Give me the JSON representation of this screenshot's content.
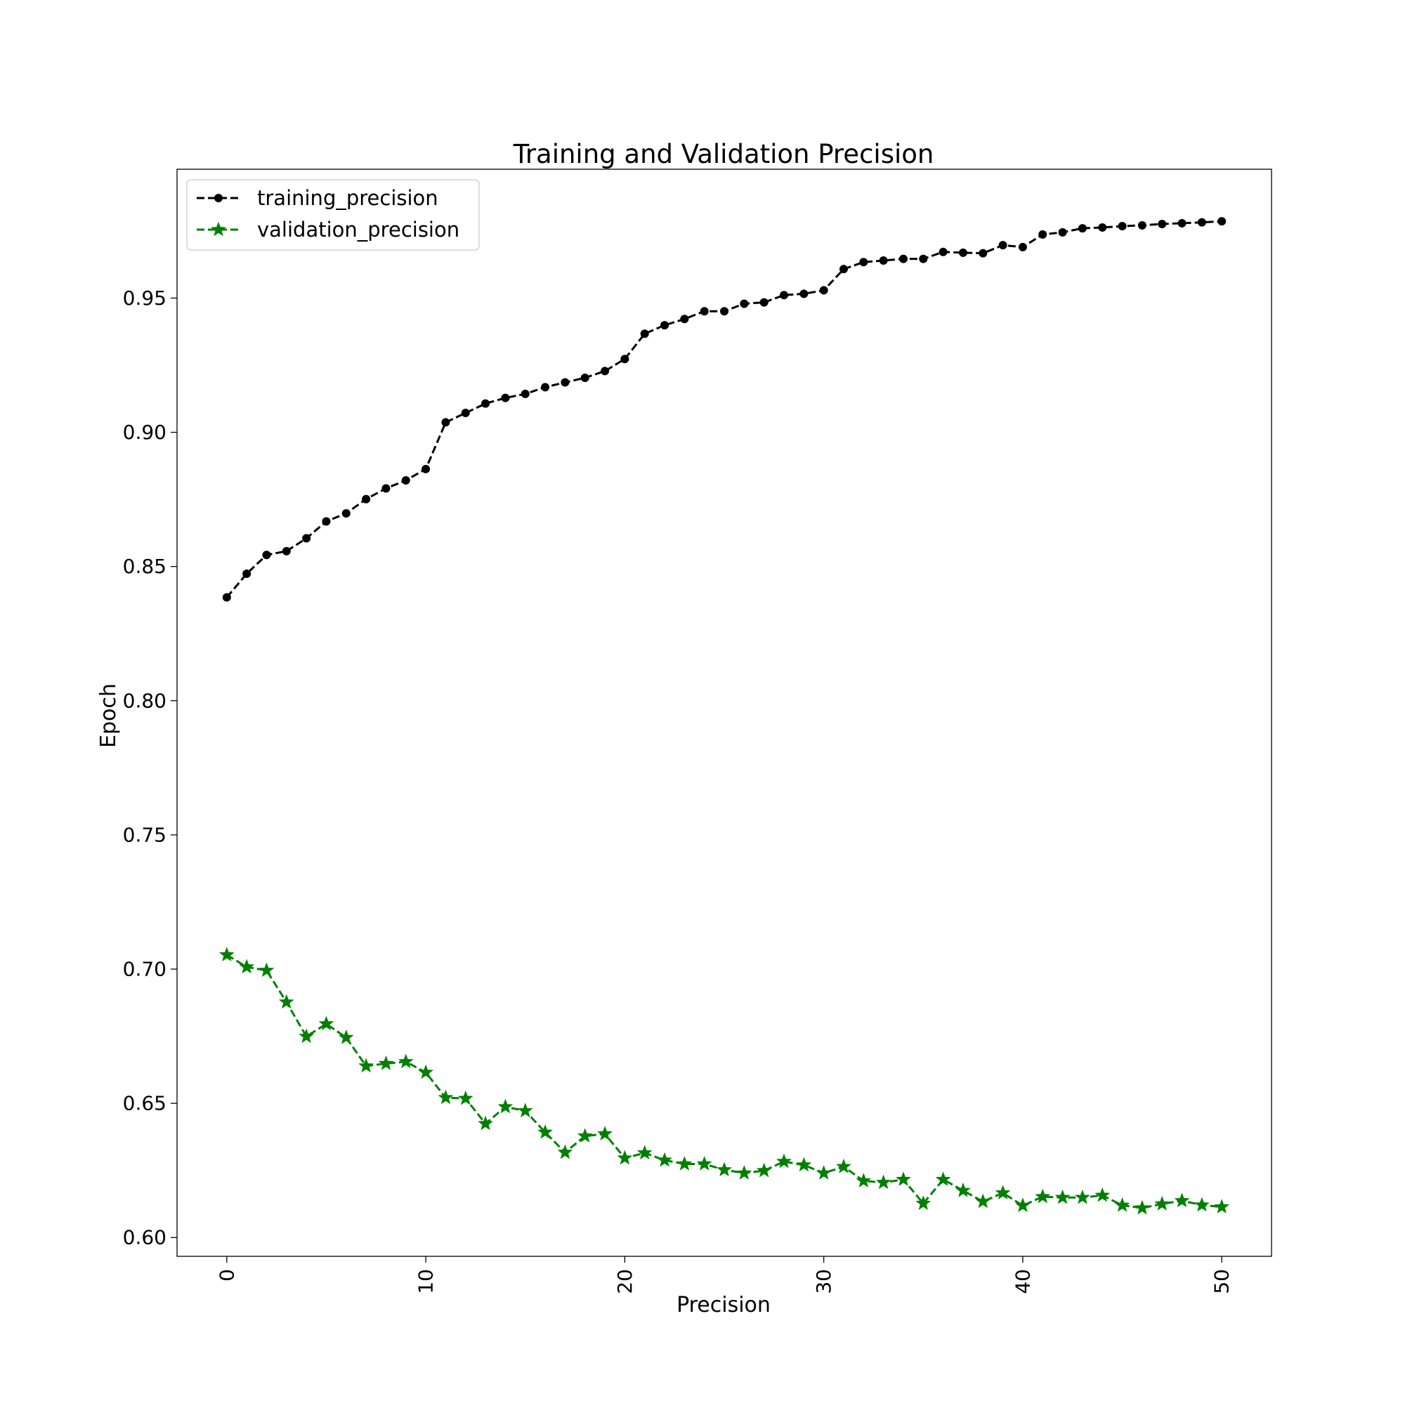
{
  "chart_data": {
    "type": "line",
    "title": "Training and Validation Precision",
    "xlabel": "Precision",
    "ylabel": "Epoch",
    "xlim": [
      -2.5,
      52.5
    ],
    "ylim": [
      0.593,
      0.998
    ],
    "xticks": [
      0,
      10,
      20,
      30,
      40,
      50
    ],
    "xtick_labels": [
      "0",
      "10",
      "20",
      "30",
      "40",
      "50"
    ],
    "yticks": [
      0.6,
      0.65,
      0.7,
      0.75,
      0.8,
      0.85,
      0.9,
      0.95
    ],
    "ytick_labels": [
      "0.60",
      "0.65",
      "0.70",
      "0.75",
      "0.80",
      "0.85",
      "0.90",
      "0.95"
    ],
    "grid": false,
    "legend_position": "top-left",
    "x": [
      0,
      1,
      2,
      3,
      4,
      5,
      6,
      7,
      8,
      9,
      10,
      11,
      12,
      13,
      14,
      15,
      16,
      17,
      18,
      19,
      20,
      21,
      22,
      23,
      24,
      25,
      26,
      27,
      28,
      29,
      30,
      31,
      32,
      33,
      34,
      35,
      36,
      37,
      38,
      39,
      40,
      41,
      42,
      43,
      44,
      45,
      46,
      47,
      48,
      49,
      50
    ],
    "series": [
      {
        "name": "training_precision",
        "color": "#000000",
        "marker": "circle",
        "line_style": "dashed",
        "values": [
          0.8385,
          0.8473,
          0.8543,
          0.8557,
          0.8605,
          0.8668,
          0.8698,
          0.8751,
          0.8791,
          0.8821,
          0.8863,
          0.9037,
          0.9072,
          0.9107,
          0.9128,
          0.9143,
          0.9168,
          0.9186,
          0.9203,
          0.9228,
          0.9273,
          0.9367,
          0.9399,
          0.9422,
          0.9451,
          0.9451,
          0.9479,
          0.9484,
          0.9511,
          0.9516,
          0.9529,
          0.9608,
          0.9634,
          0.964,
          0.9646,
          0.9646,
          0.9672,
          0.9669,
          0.9667,
          0.9697,
          0.969,
          0.9737,
          0.9745,
          0.976,
          0.9763,
          0.9768,
          0.9771,
          0.9776,
          0.9779,
          0.9782,
          0.9786
        ]
      },
      {
        "name": "validation_precision",
        "color": "#008000",
        "marker": "star",
        "line_style": "dashed",
        "values": [
          0.7053,
          0.7008,
          0.6995,
          0.6877,
          0.6749,
          0.6796,
          0.6745,
          0.6639,
          0.6648,
          0.6655,
          0.6615,
          0.6521,
          0.6518,
          0.6424,
          0.6487,
          0.6472,
          0.6392,
          0.6317,
          0.6378,
          0.6386,
          0.6296,
          0.6315,
          0.6288,
          0.6274,
          0.6274,
          0.6252,
          0.624,
          0.6249,
          0.6283,
          0.627,
          0.624,
          0.6264,
          0.6211,
          0.6205,
          0.6216,
          0.6127,
          0.6216,
          0.6175,
          0.6134,
          0.6166,
          0.6119,
          0.6152,
          0.6149,
          0.6149,
          0.6157,
          0.612,
          0.611,
          0.6125,
          0.6137,
          0.6121,
          0.6114
        ]
      }
    ]
  }
}
